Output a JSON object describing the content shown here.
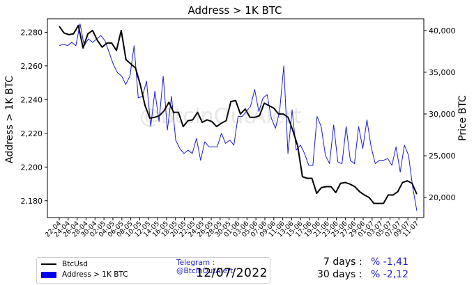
{
  "chart_data": {
    "type": "line",
    "title": "Address > 1K BTC",
    "ylabel_left": "Address > 1K BTC",
    "ylabel_right": "Price BTC",
    "x_tick_labels": [
      "22-04",
      "24-04",
      "26-04",
      "28-04",
      "30-04",
      "02-05",
      "04-05",
      "06-05",
      "08-05",
      "10-05",
      "12-05",
      "14-05",
      "16-05",
      "18-05",
      "20-05",
      "22-05",
      "24-05",
      "26-05",
      "28-05",
      "30-05",
      "01-06",
      "03-06",
      "05-06",
      "07-06",
      "09-06",
      "11-06",
      "13-06",
      "15-06",
      "17-06",
      "19-06",
      "21-06",
      "23-06",
      "25-06",
      "27-06",
      "29-06",
      "01-07",
      "03-07",
      "05-07",
      "07-07",
      "09-07",
      "11-07"
    ],
    "left_ylim": [
      2170,
      2288
    ],
    "left_ticks": [
      "2,180",
      "2,200",
      "2,220",
      "2,240",
      "2,260",
      "2,280"
    ],
    "right_ylim": [
      17600,
      41400
    ],
    "right_ticks": [
      "20,000",
      "25,000",
      "30,000",
      "35,000",
      "40,000"
    ],
    "series": [
      {
        "name": "BtcUsd",
        "axis": "right",
        "color": "#000000",
        "values": [
          40500,
          39700,
          39500,
          39600,
          40600,
          37900,
          39600,
          40000,
          38800,
          38000,
          38500,
          38500,
          37600,
          40000,
          36500,
          36000,
          35500,
          33500,
          31000,
          29500,
          29600,
          29800,
          30400,
          31400,
          30200,
          30200,
          28500,
          29200,
          29300,
          30200,
          29000,
          29300,
          29100,
          28500,
          28900,
          29200,
          31500,
          31600,
          30000,
          30600,
          29600,
          29600,
          29800,
          31300,
          31000,
          30700,
          30000,
          30000,
          29600,
          28000,
          26200,
          22500,
          22300,
          22300,
          20500,
          21200,
          21300,
          21300,
          20600,
          21700,
          21800,
          21600,
          21300,
          20700,
          20300,
          20000,
          19300,
          19300,
          19300,
          20300,
          20300,
          20700,
          21800,
          22000,
          21700,
          20400
        ]
      },
      {
        "name": "Address > 1K BTC",
        "axis": "left",
        "color": "#1c1ccc",
        "values": [
          2272,
          2273,
          2272,
          2274,
          2272,
          2285,
          2272,
          2276,
          2274,
          2276,
          2278,
          2275,
          2268,
          2261,
          2256,
          2254,
          2249,
          2254,
          2272,
          2241,
          2242,
          2251,
          2224,
          2245,
          2227,
          2254,
          2222,
          2242,
          2216,
          2211,
          2208,
          2210,
          2208,
          2217,
          2204,
          2215,
          2212,
          2212,
          2212,
          2220,
          2214,
          2216,
          2213,
          2230,
          2230,
          2233,
          2236,
          2246,
          2233,
          2241,
          2243,
          2229,
          2223,
          2233,
          2260,
          2208,
          2234,
          2210,
          2213,
          2208,
          2201,
          2201,
          2230,
          2224,
          2207,
          2202,
          2225,
          2203,
          2202,
          2224,
          2204,
          2202,
          2224,
          2211,
          2228,
          2212,
          2202,
          2204,
          2204,
          2205,
          2201,
          2212,
          2197,
          2213,
          2207,
          2188,
          2174
        ]
      }
    ]
  },
  "legend": {
    "items": [
      {
        "label": "BtcUsd",
        "color": "#000000"
      },
      {
        "label": "Address > 1K BTC",
        "color": "#0000ee"
      }
    ],
    "telegram": "Telegram : @BtcInOutAlert",
    "date": "12/07/2022"
  },
  "stats": {
    "days7_label": "7 days :",
    "days7_value": "% -1,41",
    "days30_label": "30 days :",
    "days30_value": "% -2,12"
  },
  "watermark": "@BtcInOutAlert"
}
